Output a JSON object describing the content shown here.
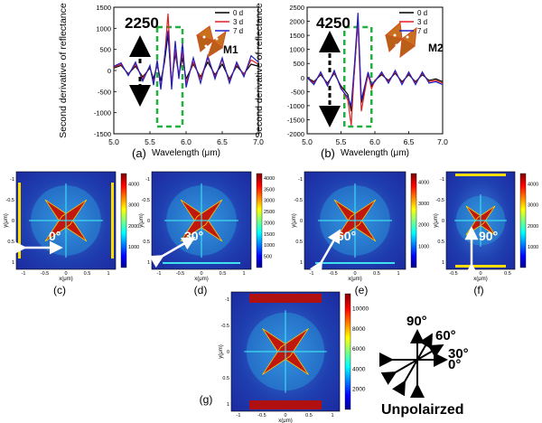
{
  "chart_data": [
    {
      "type": "line",
      "panel_label": "(a)",
      "inset_label": "M1",
      "annotation": "2250",
      "xlabel": "Wavelength (μm)",
      "ylabel": "Second derivative of reflectance",
      "xlim": [
        5.0,
        7.0
      ],
      "ylim": [
        -1500,
        1500
      ],
      "xticks": [
        "5.0",
        "5.5",
        "6.0",
        "6.5",
        "7.0"
      ],
      "yticks": [
        "-1500",
        "-1000",
        "-500",
        "0",
        "500",
        "1000",
        "1500"
      ],
      "legend": [
        "0 d",
        "3 d",
        "7 d"
      ],
      "highlight_box_x": [
        5.6,
        5.95
      ],
      "series": [
        {
          "name": "0 d",
          "color": "#000000",
          "x": [
            5.0,
            5.1,
            5.2,
            5.3,
            5.4,
            5.5,
            5.55,
            5.6,
            5.65,
            5.7,
            5.75,
            5.8,
            5.85,
            5.9,
            5.95,
            6.0,
            6.1,
            6.2,
            6.3,
            6.4,
            6.5,
            6.6,
            6.7,
            6.8,
            6.9,
            7.0
          ],
          "y": [
            60,
            120,
            -80,
            100,
            -150,
            60,
            -200,
            150,
            -250,
            180,
            850,
            -300,
            400,
            -100,
            300,
            -200,
            150,
            -150,
            200,
            -100,
            150,
            -200,
            100,
            -80,
            150,
            100
          ]
        },
        {
          "name": "3 d",
          "color": "#e02020",
          "x": [
            5.0,
            5.1,
            5.2,
            5.3,
            5.4,
            5.5,
            5.55,
            5.6,
            5.65,
            5.7,
            5.75,
            5.8,
            5.85,
            5.9,
            5.95,
            6.0,
            6.1,
            6.2,
            6.3,
            6.4,
            6.5,
            6.6,
            6.7,
            6.8,
            6.9,
            7.0
          ],
          "y": [
            80,
            150,
            -100,
            150,
            -200,
            100,
            -300,
            200,
            -400,
            250,
            1350,
            -350,
            500,
            -150,
            450,
            -300,
            200,
            -200,
            300,
            -150,
            250,
            -250,
            150,
            -100,
            250,
            150
          ]
        },
        {
          "name": "7 d",
          "color": "#2020c8",
          "x": [
            5.0,
            5.1,
            5.2,
            5.3,
            5.4,
            5.5,
            5.55,
            5.6,
            5.65,
            5.7,
            5.75,
            5.8,
            5.85,
            5.9,
            5.95,
            6.0,
            6.1,
            6.2,
            6.3,
            6.4,
            6.5,
            6.6,
            6.7,
            6.8,
            6.9,
            7.0
          ],
          "y": [
            100,
            180,
            -120,
            200,
            -250,
            120,
            -350,
            250,
            -450,
            300,
            950,
            -450,
            700,
            -200,
            650,
            -400,
            300,
            -300,
            350,
            -200,
            300,
            -300,
            200,
            -150,
            350,
            200
          ]
        }
      ]
    },
    {
      "type": "line",
      "panel_label": "(b)",
      "inset_label": "M2",
      "annotation": "4250",
      "xlabel": "Wavelength (μm)",
      "ylabel": "Second derivative of reflectance",
      "xlim": [
        5.0,
        7.0
      ],
      "ylim": [
        -2000,
        2500
      ],
      "xticks": [
        "5.0",
        "5.5",
        "6.0",
        "6.5",
        "7.0"
      ],
      "yticks": [
        "-2000",
        "-1500",
        "-1000",
        "-500",
        "0",
        "500",
        "1000",
        "1500",
        "2000",
        "2500"
      ],
      "legend": [
        "0 d",
        "3 d",
        "7 d"
      ],
      "highlight_box_x": [
        5.55,
        5.95
      ],
      "series": [
        {
          "name": "0 d",
          "color": "#000000",
          "x": [
            5.0,
            5.1,
            5.2,
            5.3,
            5.4,
            5.5,
            5.6,
            5.65,
            5.7,
            5.75,
            5.8,
            5.85,
            5.9,
            5.95,
            6.0,
            6.1,
            6.2,
            6.3,
            6.4,
            6.5,
            6.6,
            6.7,
            6.8,
            6.9,
            7.0
          ],
          "y": [
            0,
            -150,
            100,
            -200,
            150,
            -300,
            -600,
            -1200,
            300,
            2100,
            -900,
            -400,
            100,
            -300,
            -100,
            100,
            -100,
            150,
            -150,
            100,
            -150,
            100,
            -100,
            -50,
            -150
          ]
        },
        {
          "name": "3 d",
          "color": "#e02020",
          "x": [
            5.0,
            5.1,
            5.2,
            5.3,
            5.4,
            5.5,
            5.6,
            5.65,
            5.7,
            5.75,
            5.8,
            5.85,
            5.9,
            5.95,
            6.0,
            6.1,
            6.2,
            6.3,
            6.4,
            6.5,
            6.6,
            6.7,
            6.8,
            6.9,
            7.0
          ],
          "y": [
            0,
            -200,
            150,
            -250,
            200,
            -350,
            -800,
            -1700,
            400,
            2000,
            -1200,
            -500,
            150,
            -400,
            -100,
            150,
            -150,
            200,
            -200,
            150,
            -200,
            150,
            -150,
            -100,
            -200
          ]
        },
        {
          "name": "7 d",
          "color": "#2020c8",
          "x": [
            5.0,
            5.1,
            5.2,
            5.3,
            5.4,
            5.5,
            5.6,
            5.65,
            5.7,
            5.75,
            5.8,
            5.85,
            5.9,
            5.95,
            6.0,
            6.1,
            6.2,
            6.3,
            6.4,
            6.5,
            6.6,
            6.7,
            6.8,
            6.9,
            7.0
          ],
          "y": [
            0,
            -250,
            200,
            -300,
            250,
            -400,
            -700,
            -1000,
            500,
            2300,
            -800,
            -300,
            200,
            -250,
            -150,
            200,
            -200,
            250,
            -250,
            200,
            -250,
            200,
            -200,
            -150,
            -250
          ]
        }
      ]
    },
    {
      "type": "heatmap",
      "panel_label": "(c)",
      "angle_label": "0°",
      "xlabel": "x(μm)",
      "ylabel": "y(μm)",
      "xticks": [
        "-1",
        "-0.5",
        "0",
        "0.5",
        "1"
      ],
      "yticks": [
        "-1",
        "-0.5",
        "0",
        "0.5",
        "1"
      ],
      "colorbar_ticks": [
        "1000",
        "2000",
        "3000",
        "4000"
      ],
      "colorbar_range": [
        0,
        4500
      ]
    },
    {
      "type": "heatmap",
      "panel_label": "(d)",
      "angle_label": "30°",
      "xlabel": "x(μm)",
      "ylabel": "y(μm)",
      "xticks": [
        "-1",
        "-0.5",
        "0",
        "0.5",
        "1"
      ],
      "yticks": [
        "-1",
        "-0.5",
        "0",
        "0.5",
        "1"
      ],
      "colorbar_ticks": [
        "500",
        "1000",
        "1500",
        "2000",
        "2500",
        "3000",
        "3500",
        "4000"
      ],
      "colorbar_range": [
        0,
        4200
      ]
    },
    {
      "type": "heatmap",
      "panel_label": "(e)",
      "angle_label": "60°",
      "xlabel": "x(μm)",
      "ylabel": "y(μm)",
      "xticks": [
        "-1",
        "-0.5",
        "0",
        "0.5",
        "1"
      ],
      "yticks": [
        "-1",
        "-0.5",
        "0",
        "0.5",
        "1"
      ],
      "colorbar_ticks": [
        "1000",
        "2000",
        "3000",
        "4000"
      ],
      "colorbar_range": [
        0,
        4400
      ]
    },
    {
      "type": "heatmap",
      "panel_label": "(f)",
      "angle_label": "90°",
      "xlabel": "x(μm)",
      "ylabel": "y(μm)",
      "xticks": [
        "-0.5",
        "0",
        "0.5"
      ],
      "yticks": [
        "-1",
        "-0.5",
        "0",
        "0.5",
        "1"
      ],
      "colorbar_ticks": [
        "1000",
        "2000",
        "3000",
        "4000"
      ],
      "colorbar_range": [
        0,
        4500
      ]
    },
    {
      "type": "heatmap",
      "panel_label": "(g)",
      "xlabel": "x(μm)",
      "ylabel": "y(μm)",
      "xticks": [
        "-1",
        "-0.5",
        "0",
        "0.5",
        "1"
      ],
      "yticks": [
        "-1",
        "-0.5",
        "0",
        "0.5",
        "1"
      ],
      "colorbar_ticks": [
        "2000",
        "4000",
        "6000",
        "8000",
        "10000"
      ],
      "colorbar_range": [
        0,
        11500
      ]
    }
  ],
  "polarization_legend": {
    "labels": [
      "90°",
      "60°",
      "30°",
      "0°"
    ],
    "caption": "Unpolairzed"
  }
}
